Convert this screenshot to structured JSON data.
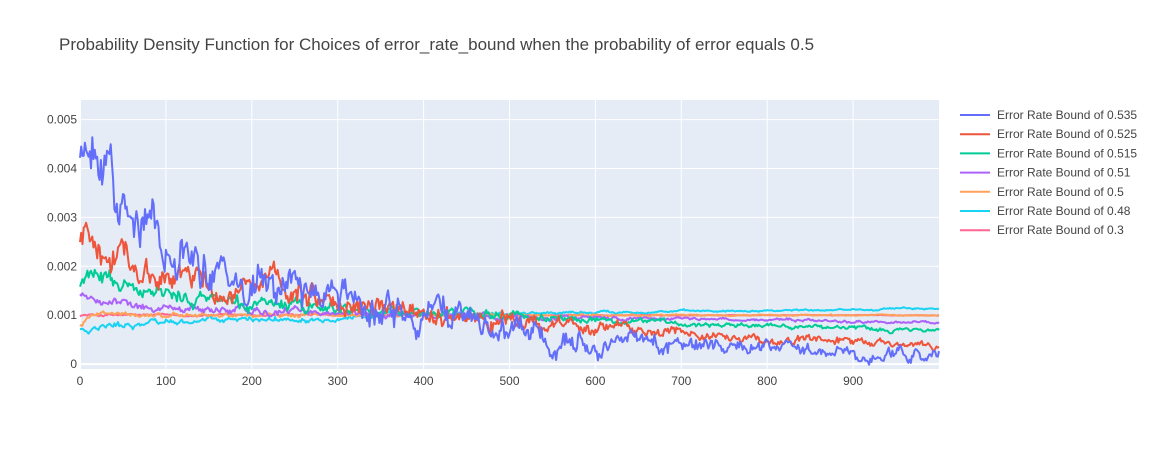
{
  "chart_data": {
    "type": "line",
    "title": "Probability Density Function for Choices of error_rate_bound when the probability of error equals 0.5",
    "xlabel": "",
    "ylabel": "",
    "xlim": [
      0,
      1000
    ],
    "ylim": [
      -0.0001,
      0.0054
    ],
    "grid": true,
    "legend_position": "right",
    "x_ticks": [
      0,
      100,
      200,
      300,
      400,
      500,
      600,
      700,
      800,
      900
    ],
    "x_tick_labels": [
      "0",
      "100",
      "200",
      "300",
      "400",
      "500",
      "600",
      "700",
      "800",
      "900"
    ],
    "y_ticks": [
      0,
      0.001,
      0.002,
      0.003,
      0.004,
      0.005
    ],
    "y_tick_labels": [
      "0",
      "0.001",
      "0.002",
      "0.003",
      "0.004",
      "0.005"
    ],
    "x": [
      0,
      10,
      25,
      50,
      75,
      100,
      150,
      200,
      250,
      300,
      350,
      400,
      450,
      500,
      550,
      600,
      650,
      700,
      750,
      800,
      850,
      900,
      950,
      1000
    ],
    "series": [
      {
        "name": "Error Rate Bound of 0.535",
        "color": "#636efa",
        "noise": 0.00032,
        "values": [
          0.0044,
          0.0043,
          0.0038,
          0.0033,
          0.0029,
          0.0026,
          0.0021,
          0.0018,
          0.00155,
          0.00132,
          0.00112,
          0.00095,
          0.00082,
          0.00071,
          0.00062,
          0.00054,
          0.00046,
          0.0004,
          0.00034,
          0.00029,
          0.00024,
          0.0002,
          0.00017,
          0.00016
        ]
      },
      {
        "name": "Error Rate Bound of 0.525",
        "color": "#ef553b",
        "noise": 0.0002,
        "values": [
          0.0025,
          0.0027,
          0.0024,
          0.0022,
          0.002,
          0.0019,
          0.0016,
          0.00148,
          0.00138,
          0.00122,
          0.00112,
          0.00104,
          0.00095,
          0.0009,
          0.00082,
          0.00076,
          0.00068,
          0.00062,
          0.00056,
          0.0005,
          0.00046,
          0.00042,
          0.00038,
          0.00035
        ]
      },
      {
        "name": "Error Rate Bound of 0.515",
        "color": "#00cc96",
        "noise": 0.0001,
        "values": [
          0.0017,
          0.00172,
          0.00165,
          0.00155,
          0.00145,
          0.0014,
          0.0013,
          0.00124,
          0.0012,
          0.00114,
          0.0011,
          0.00104,
          0.00102,
          0.001,
          0.00096,
          0.00092,
          0.00088,
          0.00084,
          0.00082,
          0.0008,
          0.00076,
          0.00074,
          0.0007,
          0.00068
        ]
      },
      {
        "name": "Error Rate Bound of 0.51",
        "color": "#ab63fa",
        "noise": 6e-05,
        "values": [
          0.0014,
          0.00135,
          0.00128,
          0.00122,
          0.00118,
          0.00115,
          0.00112,
          0.00108,
          0.00106,
          0.00104,
          0.00102,
          0.001,
          0.00099,
          0.00098,
          0.00097,
          0.00095,
          0.00094,
          0.00093,
          0.00092,
          0.0009,
          0.00089,
          0.00087,
          0.00086,
          0.00085
        ]
      },
      {
        "name": "Error Rate Bound of 0.5",
        "color": "#ffa15a",
        "noise": 3e-05,
        "values": [
          0.0008,
          0.00095,
          0.001,
          0.001,
          0.001,
          0.001,
          0.001,
          0.001,
          0.001,
          0.001,
          0.001,
          0.001,
          0.001,
          0.001,
          0.001,
          0.001,
          0.001,
          0.001,
          0.001,
          0.001,
          0.001,
          0.001,
          0.001,
          0.001
        ]
      },
      {
        "name": "Error Rate Bound of 0.48",
        "color": "#19d3f3",
        "noise": 4e-05,
        "values": [
          0.0007,
          0.00068,
          0.00075,
          0.0008,
          0.00083,
          0.00086,
          0.00089,
          0.00091,
          0.00093,
          0.00096,
          0.00099,
          0.001,
          0.00102,
          0.00104,
          0.00105,
          0.00106,
          0.00107,
          0.00108,
          0.00109,
          0.0011,
          0.00111,
          0.00112,
          0.00113,
          0.00114
        ]
      },
      {
        "name": "Error Rate Bound of 0.3",
        "color": "#ff6692",
        "noise": 1.5e-05,
        "values": [
          0.001,
          0.001,
          0.001,
          0.001,
          0.001,
          0.001,
          0.001,
          0.001,
          0.001,
          0.001,
          0.001,
          0.001,
          0.001,
          0.001,
          0.001,
          0.001,
          0.001,
          0.001,
          0.001,
          0.001,
          0.001,
          0.001,
          0.001,
          0.001
        ]
      }
    ]
  }
}
